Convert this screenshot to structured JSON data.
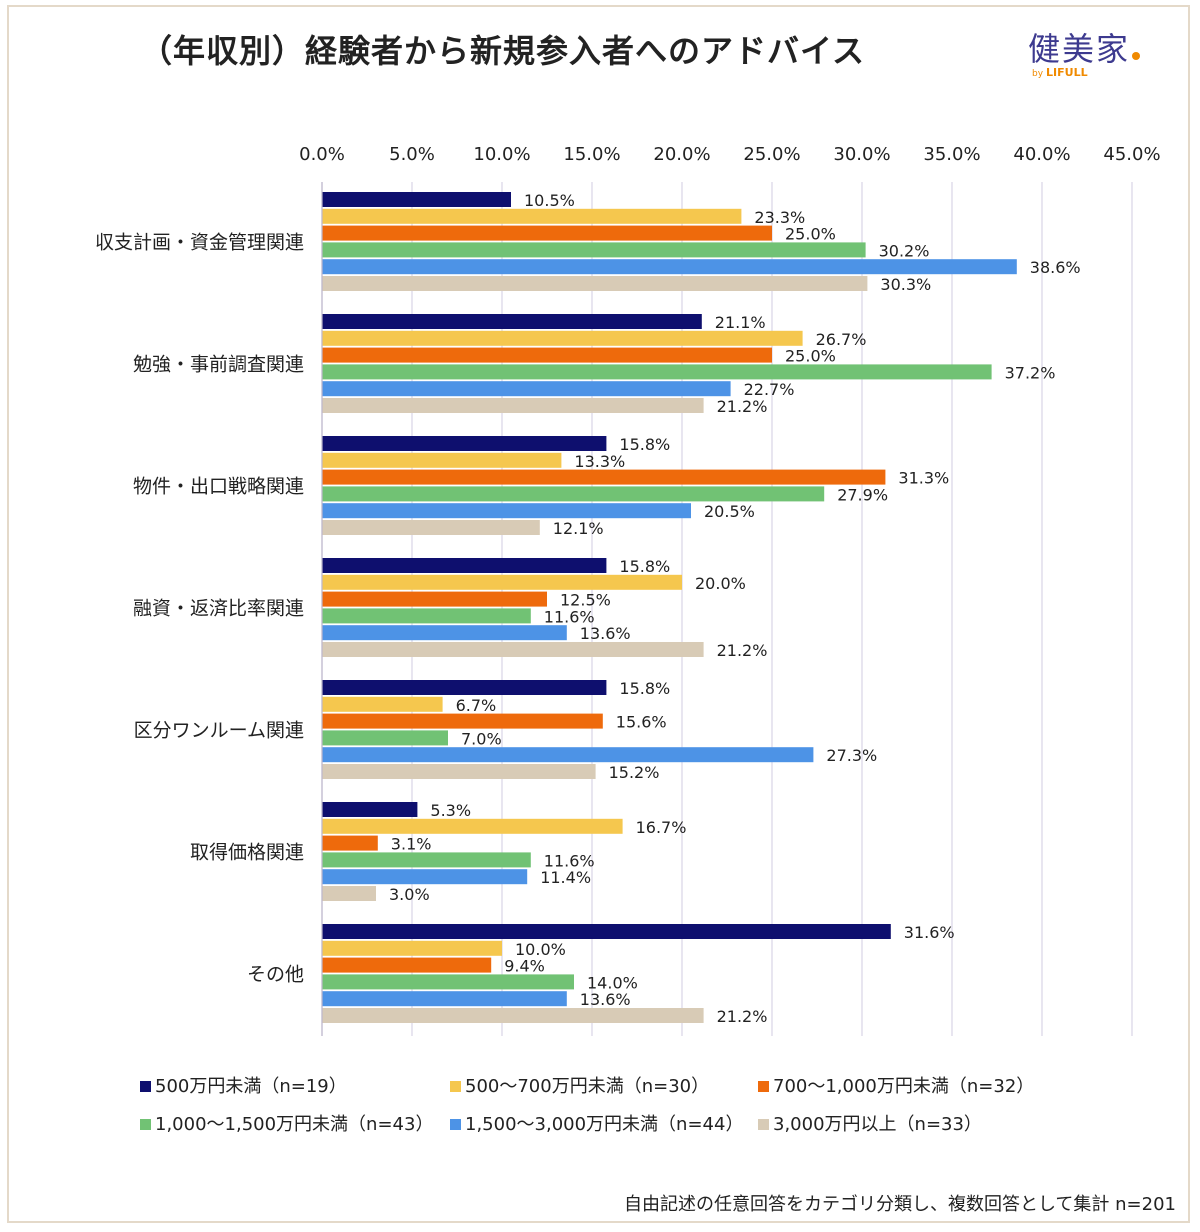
{
  "title": "（年収別）経験者から新規参入者へのアドバイス",
  "logo": {
    "main": "健美家",
    "by": "by",
    "brand": "LIFULL"
  },
  "footnote": "自由記述の任意回答をカテゴリ分類し、複数回答として集計 n=201",
  "chart_data": {
    "type": "bar",
    "orientation": "horizontal",
    "xlim": [
      0,
      45
    ],
    "x_ticks": [
      "0.0%",
      "5.0%",
      "10.0%",
      "15.0%",
      "20.0%",
      "25.0%",
      "30.0%",
      "35.0%",
      "40.0%",
      "45.0%"
    ],
    "x_tick_values": [
      0,
      5,
      10,
      15,
      20,
      25,
      30,
      35,
      40,
      45
    ],
    "grid": true,
    "legend_position": "bottom",
    "categories": [
      "収支計画・資金管理関連",
      "勉強・事前調査関連",
      "物件・出口戦略関連",
      "融資・返済比率関連",
      "区分ワンルーム関連",
      "取得価格関連",
      "その他"
    ],
    "series": [
      {
        "name": "500万円未満（n=19）",
        "color": "#0e0f6e",
        "values": [
          10.5,
          21.1,
          15.8,
          15.8,
          15.8,
          5.3,
          31.6
        ]
      },
      {
        "name": "500〜700万円未満（n=30）",
        "color": "#f5c74e",
        "values": [
          23.3,
          26.7,
          13.3,
          20.0,
          6.7,
          16.7,
          10.0
        ]
      },
      {
        "name": "700〜1,000万円未満（n=32）",
        "color": "#ee6a0c",
        "values": [
          25.0,
          25.0,
          31.3,
          12.5,
          15.6,
          3.1,
          9.4
        ]
      },
      {
        "name": "1,000〜1,500万円未満（n=43）",
        "color": "#71c274",
        "values": [
          30.2,
          37.2,
          27.9,
          11.6,
          7.0,
          11.6,
          14.0
        ]
      },
      {
        "name": "1,500〜3,000万円未満（n=44）",
        "color": "#4d93e6",
        "values": [
          38.6,
          22.7,
          20.5,
          13.6,
          27.3,
          11.4,
          13.6
        ]
      },
      {
        "name": "3,000万円以上（n=33）",
        "color": "#d8cbb6",
        "values": [
          30.3,
          21.2,
          12.1,
          21.2,
          15.2,
          3.0,
          21.2
        ]
      }
    ]
  }
}
